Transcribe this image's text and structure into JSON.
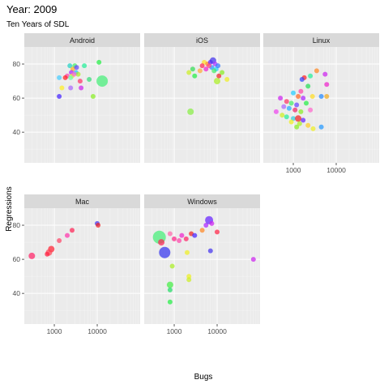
{
  "chart_data": {
    "type": "scatter",
    "title": "Year: 2009",
    "subtitle": "Ten Years of SDL",
    "xlabel": "Bugs",
    "ylabel": "Regressions",
    "x_scale": "log10",
    "xlim": [
      200,
      100000
    ],
    "ylim": [
      22,
      90
    ],
    "x_ticks": [
      1000,
      10000
    ],
    "x_tick_labels": [
      "1000",
      "10000"
    ],
    "y_ticks": [
      40,
      60,
      80
    ],
    "y_tick_labels": [
      "40",
      "60",
      "80"
    ],
    "grid": true,
    "legend": "none",
    "facets": [
      {
        "label": "Android",
        "points": [
          {
            "x": 2300,
            "y": 79,
            "size": 3,
            "color": "#22d3c5"
          },
          {
            "x": 3000,
            "y": 79,
            "size": 3,
            "color": "#44ee66"
          },
          {
            "x": 2700,
            "y": 77,
            "size": 3,
            "color": "#ffaa22"
          },
          {
            "x": 3300,
            "y": 78,
            "size": 3,
            "color": "#6644ff"
          },
          {
            "x": 2000,
            "y": 73,
            "size": 3,
            "color": "#ff44aa"
          },
          {
            "x": 2500,
            "y": 75,
            "size": 3,
            "color": "#aa22ff"
          },
          {
            "x": 2600,
            "y": 73,
            "size": 3,
            "color": "#eeee22"
          },
          {
            "x": 2400,
            "y": 72,
            "size": 3,
            "color": "#66ffaa"
          },
          {
            "x": 1800,
            "y": 72,
            "size": 3,
            "color": "#ff2222"
          },
          {
            "x": 3200,
            "y": 75,
            "size": 3,
            "color": "#22bbff"
          },
          {
            "x": 3600,
            "y": 74,
            "size": 3,
            "color": "#aaee22"
          },
          {
            "x": 2900,
            "y": 74,
            "size": 3,
            "color": "#ff66cc"
          },
          {
            "x": 4000,
            "y": 70,
            "size": 3,
            "color": "#ff3366"
          },
          {
            "x": 5000,
            "y": 79,
            "size": 3,
            "color": "#22ee99"
          },
          {
            "x": 1300,
            "y": 72,
            "size": 3,
            "color": "#44ccff"
          },
          {
            "x": 1500,
            "y": 66,
            "size": 3,
            "color": "#ffee22"
          },
          {
            "x": 1300,
            "y": 61,
            "size": 3,
            "color": "#4422ff"
          },
          {
            "x": 2400,
            "y": 66,
            "size": 3,
            "color": "#aa66ff"
          },
          {
            "x": 4200,
            "y": 66,
            "size": 3,
            "color": "#cc22ee"
          },
          {
            "x": 8000,
            "y": 61,
            "size": 3,
            "color": "#88ee22"
          },
          {
            "x": 6500,
            "y": 71,
            "size": 3,
            "color": "#33dd77"
          },
          {
            "x": 11000,
            "y": 81,
            "size": 3,
            "color": "#22ee44"
          },
          {
            "x": 13000,
            "y": 70,
            "size": 7,
            "color": "#44ee77"
          }
        ]
      },
      {
        "label": "iOS",
        "points": [
          {
            "x": 5000,
            "y": 81,
            "size": 3,
            "color": "#ffdd22"
          },
          {
            "x": 6000,
            "y": 80,
            "size": 3,
            "color": "#ff8822"
          },
          {
            "x": 7000,
            "y": 81,
            "size": 3,
            "color": "#6622ff"
          },
          {
            "x": 8000,
            "y": 82,
            "size": 4,
            "color": "#4433ee"
          },
          {
            "x": 9000,
            "y": 80,
            "size": 3,
            "color": "#aa33ff"
          },
          {
            "x": 7500,
            "y": 78,
            "size": 3,
            "color": "#2299ff"
          },
          {
            "x": 6500,
            "y": 79,
            "size": 3,
            "color": "#ff4488"
          },
          {
            "x": 5500,
            "y": 77,
            "size": 3,
            "color": "#ee22cc"
          },
          {
            "x": 4500,
            "y": 79,
            "size": 3,
            "color": "#ff2255"
          },
          {
            "x": 4000,
            "y": 76,
            "size": 3,
            "color": "#ffaa33"
          },
          {
            "x": 9500,
            "y": 77,
            "size": 3,
            "color": "#22ccff"
          },
          {
            "x": 10500,
            "y": 79,
            "size": 3,
            "color": "#3377ff"
          },
          {
            "x": 8500,
            "y": 76,
            "size": 3,
            "color": "#44ee66"
          },
          {
            "x": 11000,
            "y": 73,
            "size": 3,
            "color": "#ee2222"
          },
          {
            "x": 13000,
            "y": 75,
            "size": 3,
            "color": "#88ee22"
          },
          {
            "x": 10000,
            "y": 70,
            "size": 4,
            "color": "#aaee22"
          },
          {
            "x": 17000,
            "y": 71,
            "size": 3,
            "color": "#eeee22"
          },
          {
            "x": 2200,
            "y": 75,
            "size": 3,
            "color": "#ccee22"
          },
          {
            "x": 3000,
            "y": 73,
            "size": 3,
            "color": "#22ee44"
          },
          {
            "x": 2700,
            "y": 77,
            "size": 3,
            "color": "#33dd55"
          },
          {
            "x": 2400,
            "y": 52,
            "size": 4,
            "color": "#88ee44"
          }
        ]
      },
      {
        "label": "Linux",
        "points": [
          {
            "x": 3500,
            "y": 76,
            "size": 3,
            "color": "#ff8822"
          },
          {
            "x": 5500,
            "y": 74,
            "size": 3,
            "color": "#cc22ee"
          },
          {
            "x": 2500,
            "y": 73,
            "size": 3,
            "color": "#22ee99"
          },
          {
            "x": 1800,
            "y": 72,
            "size": 3,
            "color": "#ff2222"
          },
          {
            "x": 1600,
            "y": 71,
            "size": 3,
            "color": "#3344ff"
          },
          {
            "x": 2200,
            "y": 67,
            "size": 3,
            "color": "#22dd55"
          },
          {
            "x": 1500,
            "y": 64,
            "size": 3,
            "color": "#ff44aa"
          },
          {
            "x": 1000,
            "y": 63,
            "size": 3,
            "color": "#22ccff"
          },
          {
            "x": 1300,
            "y": 61,
            "size": 3,
            "color": "#ff6622"
          },
          {
            "x": 1700,
            "y": 60,
            "size": 3,
            "color": "#aa22ff"
          },
          {
            "x": 2800,
            "y": 61,
            "size": 3,
            "color": "#ffdd22"
          },
          {
            "x": 4500,
            "y": 61,
            "size": 3,
            "color": "#2288ff"
          },
          {
            "x": 6000,
            "y": 61,
            "size": 3,
            "color": "#eeaa22"
          },
          {
            "x": 500,
            "y": 60,
            "size": 3,
            "color": "#cc22ee"
          },
          {
            "x": 700,
            "y": 58,
            "size": 3,
            "color": "#ff3366"
          },
          {
            "x": 900,
            "y": 57,
            "size": 3,
            "color": "#44ee66"
          },
          {
            "x": 1200,
            "y": 56,
            "size": 3,
            "color": "#6644ff"
          },
          {
            "x": 2000,
            "y": 57,
            "size": 3,
            "color": "#22ee44"
          },
          {
            "x": 600,
            "y": 55,
            "size": 3,
            "color": "#aa66ff"
          },
          {
            "x": 800,
            "y": 54,
            "size": 3,
            "color": "#22aaff"
          },
          {
            "x": 1100,
            "y": 53,
            "size": 3,
            "color": "#ee2266"
          },
          {
            "x": 1500,
            "y": 52,
            "size": 3,
            "color": "#88ee22"
          },
          {
            "x": 2500,
            "y": 53,
            "size": 3,
            "color": "#ff66cc"
          },
          {
            "x": 400,
            "y": 52,
            "size": 3,
            "color": "#ee44ee"
          },
          {
            "x": 550,
            "y": 50,
            "size": 3,
            "color": "#ccee22"
          },
          {
            "x": 700,
            "y": 49,
            "size": 3,
            "color": "#22ee99"
          },
          {
            "x": 1000,
            "y": 48,
            "size": 3,
            "color": "#33ccdd"
          },
          {
            "x": 1300,
            "y": 48,
            "size": 4,
            "color": "#ee2222"
          },
          {
            "x": 1700,
            "y": 47,
            "size": 3,
            "color": "#6622ff"
          },
          {
            "x": 900,
            "y": 46,
            "size": 3,
            "color": "#eeee22"
          },
          {
            "x": 1400,
            "y": 45,
            "size": 3,
            "color": "#aaee22"
          },
          {
            "x": 2200,
            "y": 44,
            "size": 3,
            "color": "#ffcc22"
          },
          {
            "x": 1200,
            "y": 43,
            "size": 3,
            "color": "#88ee22"
          },
          {
            "x": 2900,
            "y": 42,
            "size": 3,
            "color": "#eeee22"
          },
          {
            "x": 4500,
            "y": 43,
            "size": 3,
            "color": "#2299ff"
          },
          {
            "x": 6000,
            "y": 68,
            "size": 3,
            "color": "#ee22cc"
          }
        ]
      },
      {
        "label": "Mac",
        "points": [
          {
            "x": 10000,
            "y": 81,
            "size": 3,
            "color": "#4433ee"
          },
          {
            "x": 10500,
            "y": 80,
            "size": 3,
            "color": "#ee2222"
          },
          {
            "x": 2000,
            "y": 74,
            "size": 3,
            "color": "#ff33aa"
          },
          {
            "x": 2600,
            "y": 77,
            "size": 3,
            "color": "#ff2255"
          },
          {
            "x": 1300,
            "y": 71,
            "size": 3,
            "color": "#ff4466"
          },
          {
            "x": 850,
            "y": 66,
            "size": 4,
            "color": "#ff2233"
          },
          {
            "x": 750,
            "y": 64,
            "size": 4,
            "color": "#ff4455"
          },
          {
            "x": 680,
            "y": 63,
            "size": 3,
            "color": "#ff2244"
          },
          {
            "x": 300,
            "y": 62,
            "size": 4,
            "color": "#ff2266"
          }
        ]
      },
      {
        "label": "Windows",
        "points": [
          {
            "x": 450,
            "y": 73,
            "size": 8,
            "color": "#44ee77"
          },
          {
            "x": 600,
            "y": 64,
            "size": 7,
            "color": "#3333ee"
          },
          {
            "x": 500,
            "y": 70,
            "size": 4,
            "color": "#ff2255"
          },
          {
            "x": 800,
            "y": 75,
            "size": 3,
            "color": "#ff66aa"
          },
          {
            "x": 1000,
            "y": 72,
            "size": 3,
            "color": "#ff2288"
          },
          {
            "x": 1300,
            "y": 71,
            "size": 3,
            "color": "#ff44aa"
          },
          {
            "x": 1500,
            "y": 74,
            "size": 3,
            "color": "#ee22cc"
          },
          {
            "x": 1900,
            "y": 72,
            "size": 3,
            "color": "#ff2266"
          },
          {
            "x": 2500,
            "y": 75,
            "size": 3,
            "color": "#ee2222"
          },
          {
            "x": 3000,
            "y": 74,
            "size": 3,
            "color": "#4422ff"
          },
          {
            "x": 4500,
            "y": 77,
            "size": 3,
            "color": "#ff8822"
          },
          {
            "x": 5500,
            "y": 80,
            "size": 3,
            "color": "#aa22ff"
          },
          {
            "x": 6500,
            "y": 83,
            "size": 5,
            "color": "#6622ff"
          },
          {
            "x": 7500,
            "y": 81,
            "size": 3,
            "color": "#cc22ee"
          },
          {
            "x": 10000,
            "y": 76,
            "size": 3,
            "color": "#ff2244"
          },
          {
            "x": 7000,
            "y": 65,
            "size": 3,
            "color": "#4433ee"
          },
          {
            "x": 2000,
            "y": 64,
            "size": 3,
            "color": "#eeee22"
          },
          {
            "x": 900,
            "y": 56,
            "size": 3,
            "color": "#aaee22"
          },
          {
            "x": 2200,
            "y": 50,
            "size": 3,
            "color": "#eeee22"
          },
          {
            "x": 2200,
            "y": 48,
            "size": 3,
            "color": "#ccee22"
          },
          {
            "x": 800,
            "y": 45,
            "size": 4,
            "color": "#44ee44"
          },
          {
            "x": 800,
            "y": 42,
            "size": 3,
            "color": "#22dd66"
          },
          {
            "x": 800,
            "y": 35,
            "size": 3,
            "color": "#22ee44"
          },
          {
            "x": 70000,
            "y": 60,
            "size": 3,
            "color": "#cc22ee"
          }
        ]
      }
    ]
  }
}
